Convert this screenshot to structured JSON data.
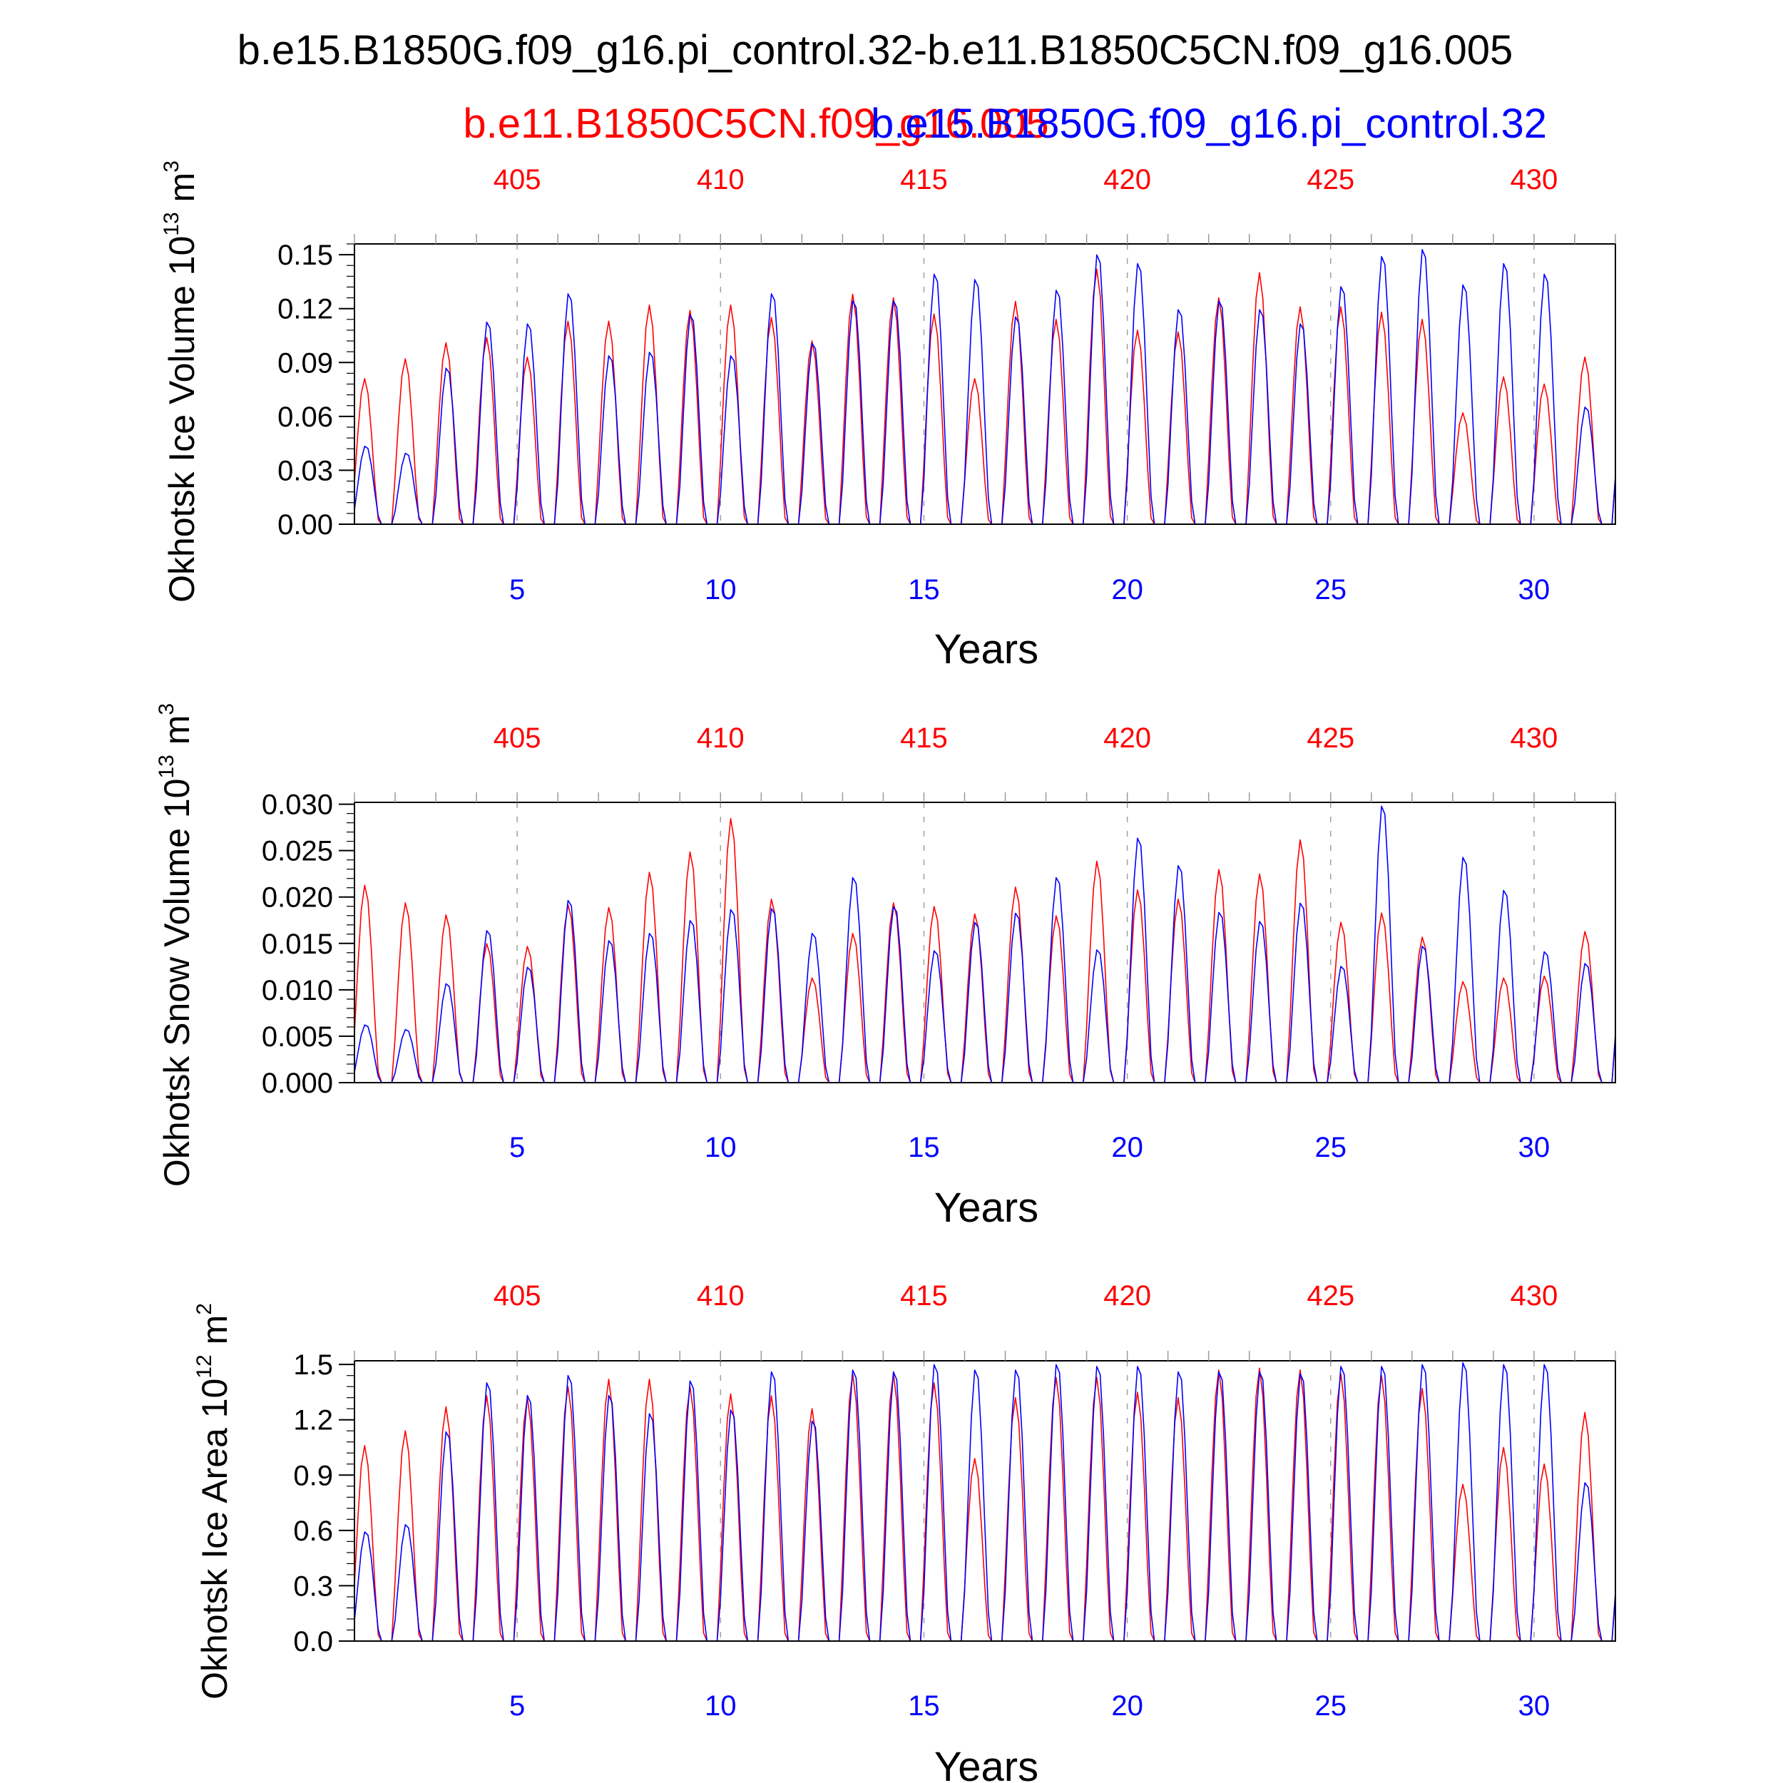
{
  "title": "b.e15.B1850G.f09_g16.pi_control.32-b.e11.B1850C5CN.f09_g16.005",
  "legend": {
    "series_a": "b.e11.B1850C5CN.f09_g16.005",
    "series_b": "b.e15.B1850G.f09_g16.pi_control.32"
  },
  "colors": {
    "series_a": "#ff0000",
    "series_b": "#0000ff",
    "axes": "#000000"
  },
  "chart_data": [
    {
      "type": "line",
      "ylabel": "Okhotsk Ice Volume",
      "yunit": {
        "scale": "10",
        "scale_exp": "13",
        "unit": "m",
        "unit_exp": "3"
      },
      "xlabel": "Years",
      "xlim": [
        1,
        32
      ],
      "ylim": [
        0,
        0.156
      ],
      "yticks": [
        "0.00",
        "0.03",
        "0.06",
        "0.09",
        "0.12",
        "0.15"
      ],
      "ytick_values": [
        0,
        0.03,
        0.06,
        0.09,
        0.12,
        0.15
      ],
      "bottom_ticks": [
        "5",
        "10",
        "15",
        "20",
        "25",
        "30"
      ],
      "bottom_tick_values": [
        5,
        10,
        15,
        20,
        25,
        30
      ],
      "top_ticks": [
        "405",
        "410",
        "415",
        "420",
        "425",
        "430"
      ],
      "top_tick_values": [
        5,
        10,
        15,
        20,
        25,
        30
      ],
      "series": [
        {
          "name": "b.e11.B1850C5CN.f09_g16.005",
          "color": "#ff0000",
          "annual_peaks": [
            0.081,
            0.092,
            0.101,
            0.104,
            0.093,
            0.113,
            0.113,
            0.122,
            0.119,
            0.122,
            0.115,
            0.102,
            0.128,
            0.126,
            0.117,
            0.081,
            0.124,
            0.114,
            0.142,
            0.108,
            0.107,
            0.126,
            0.14,
            0.121,
            0.121,
            0.118,
            0.114,
            0.062,
            0.082,
            0.078,
            0.093
          ],
          "peak_offset": 0.25
        },
        {
          "name": "b.e15.B1850G.f09_g16.pi_control.32",
          "color": "#0000ff",
          "annual_peaks": [
            0.044,
            0.04,
            0.088,
            0.114,
            0.113,
            0.13,
            0.095,
            0.097,
            0.118,
            0.095,
            0.13,
            0.102,
            0.126,
            0.126,
            0.141,
            0.138,
            0.117,
            0.132,
            0.152,
            0.147,
            0.121,
            0.126,
            0.121,
            0.113,
            0.134,
            0.151,
            0.155,
            0.135,
            0.147,
            0.141,
            0.066
          ],
          "peak_offset": 0.28
        }
      ]
    },
    {
      "type": "line",
      "ylabel": "Okhotsk Snow Volume",
      "yunit": {
        "scale": "10",
        "scale_exp": "13",
        "unit": "m",
        "unit_exp": "3"
      },
      "xlabel": "Years",
      "xlim": [
        1,
        32
      ],
      "ylim": [
        0,
        0.0302
      ],
      "yticks": [
        "0.000",
        "0.005",
        "0.010",
        "0.015",
        "0.020",
        "0.025",
        "0.030"
      ],
      "ytick_values": [
        0,
        0.005,
        0.01,
        0.015,
        0.02,
        0.025,
        0.03
      ],
      "bottom_ticks": [
        "5",
        "10",
        "15",
        "20",
        "25",
        "30"
      ],
      "bottom_tick_values": [
        5,
        10,
        15,
        20,
        25,
        30
      ],
      "top_ticks": [
        "405",
        "410",
        "415",
        "420",
        "425",
        "430"
      ],
      "top_tick_values": [
        5,
        10,
        15,
        20,
        25,
        30
      ],
      "series": [
        {
          "name": "b.e11.B1850C5CN.f09_g16.005",
          "color": "#ff0000",
          "annual_peaks": [
            0.0213,
            0.0194,
            0.0181,
            0.015,
            0.0147,
            0.0192,
            0.0189,
            0.0227,
            0.0249,
            0.0285,
            0.0198,
            0.0113,
            0.0161,
            0.0194,
            0.019,
            0.0182,
            0.0211,
            0.018,
            0.0239,
            0.0208,
            0.0198,
            0.023,
            0.0225,
            0.0262,
            0.0173,
            0.0183,
            0.0157,
            0.0109,
            0.0113,
            0.0115,
            0.0163
          ],
          "peak_offset": 0.26
        },
        {
          "name": "b.e15.B1850G.f09_g16.pi_control.32",
          "color": "#0000ff",
          "annual_peaks": [
            0.0063,
            0.0058,
            0.0108,
            0.0166,
            0.0126,
            0.0199,
            0.0155,
            0.0163,
            0.0177,
            0.0189,
            0.019,
            0.0163,
            0.0224,
            0.0192,
            0.0144,
            0.0175,
            0.0185,
            0.0224,
            0.0145,
            0.0267,
            0.0237,
            0.0186,
            0.0176,
            0.0196,
            0.0127,
            0.0302,
            0.0149,
            0.0246,
            0.021,
            0.0143,
            0.013
          ],
          "peak_offset": 0.28
        }
      ]
    },
    {
      "type": "line",
      "ylabel": "Okhotsk Ice Area",
      "yunit": {
        "scale": "10",
        "scale_exp": "12",
        "unit": "m",
        "unit_exp": "2"
      },
      "xlabel": "Years",
      "xlim": [
        1,
        32
      ],
      "ylim": [
        0,
        1.52
      ],
      "yticks": [
        "0.0",
        "0.3",
        "0.6",
        "0.9",
        "1.2",
        "1.5"
      ],
      "ytick_values": [
        0,
        0.3,
        0.6,
        0.9,
        1.2,
        1.5
      ],
      "bottom_ticks": [
        "5",
        "10",
        "15",
        "20",
        "25",
        "30"
      ],
      "bottom_tick_values": [
        5,
        10,
        15,
        20,
        25,
        30
      ],
      "top_ticks": [
        "405",
        "410",
        "415",
        "420",
        "425",
        "430"
      ],
      "top_tick_values": [
        5,
        10,
        15,
        20,
        25,
        30
      ],
      "series": [
        {
          "name": "b.e11.B1850C5CN.f09_g16.005",
          "color": "#ff0000",
          "annual_peaks": [
            1.06,
            1.14,
            1.27,
            1.33,
            1.32,
            1.38,
            1.42,
            1.42,
            1.38,
            1.34,
            1.33,
            1.26,
            1.45,
            1.45,
            1.4,
            0.99,
            1.32,
            1.43,
            1.43,
            1.35,
            1.32,
            1.47,
            1.48,
            1.47,
            1.45,
            1.44,
            1.37,
            0.85,
            1.05,
            0.96,
            1.24
          ],
          "peak_offset": 0.25
        },
        {
          "name": "b.e15.B1850G.f09_g16.pi_control.32",
          "color": "#0000ff",
          "annual_peaks": [
            0.6,
            0.64,
            1.15,
            1.42,
            1.35,
            1.46,
            1.35,
            1.25,
            1.43,
            1.27,
            1.48,
            1.21,
            1.49,
            1.48,
            1.52,
            1.49,
            1.49,
            1.52,
            1.51,
            1.51,
            1.48,
            1.48,
            1.48,
            1.47,
            1.51,
            1.51,
            1.52,
            1.53,
            1.52,
            1.52,
            0.87
          ],
          "peak_offset": 0.28
        }
      ]
    }
  ]
}
